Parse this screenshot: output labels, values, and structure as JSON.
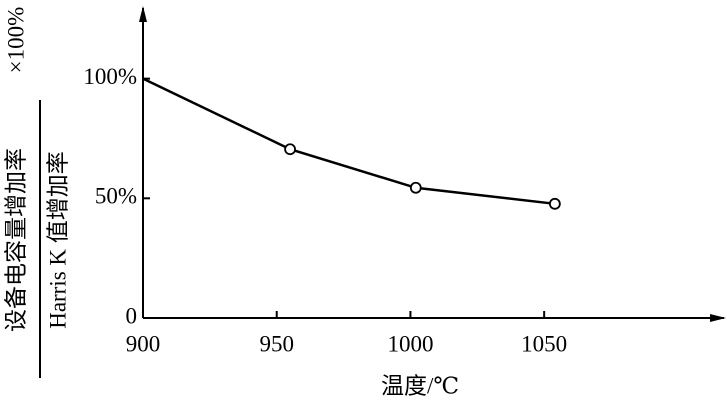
{
  "chart_data": {
    "type": "line",
    "y_label_numerator": "设备电容量增加率",
    "y_label_denominator": "Harris K 值增加率",
    "y_label_multiplier": "×100%",
    "x_label": "温度/℃",
    "x": [
      900,
      955,
      1002,
      1054
    ],
    "series": [
      {
        "color": "#000000",
        "values": [
          100,
          70.5,
          54.4,
          47.7
        ],
        "markers": [
          false,
          true,
          true,
          true
        ]
      }
    ],
    "xlim": [
      900,
      1115
    ],
    "xticks": [
      900,
      950,
      1000,
      1050
    ],
    "ylim": [
      0,
      127
    ],
    "yticks": [
      0,
      {
        "value": 50,
        "label": "50%"
      },
      {
        "value": 100,
        "label": "100%"
      }
    ],
    "grid": false
  }
}
